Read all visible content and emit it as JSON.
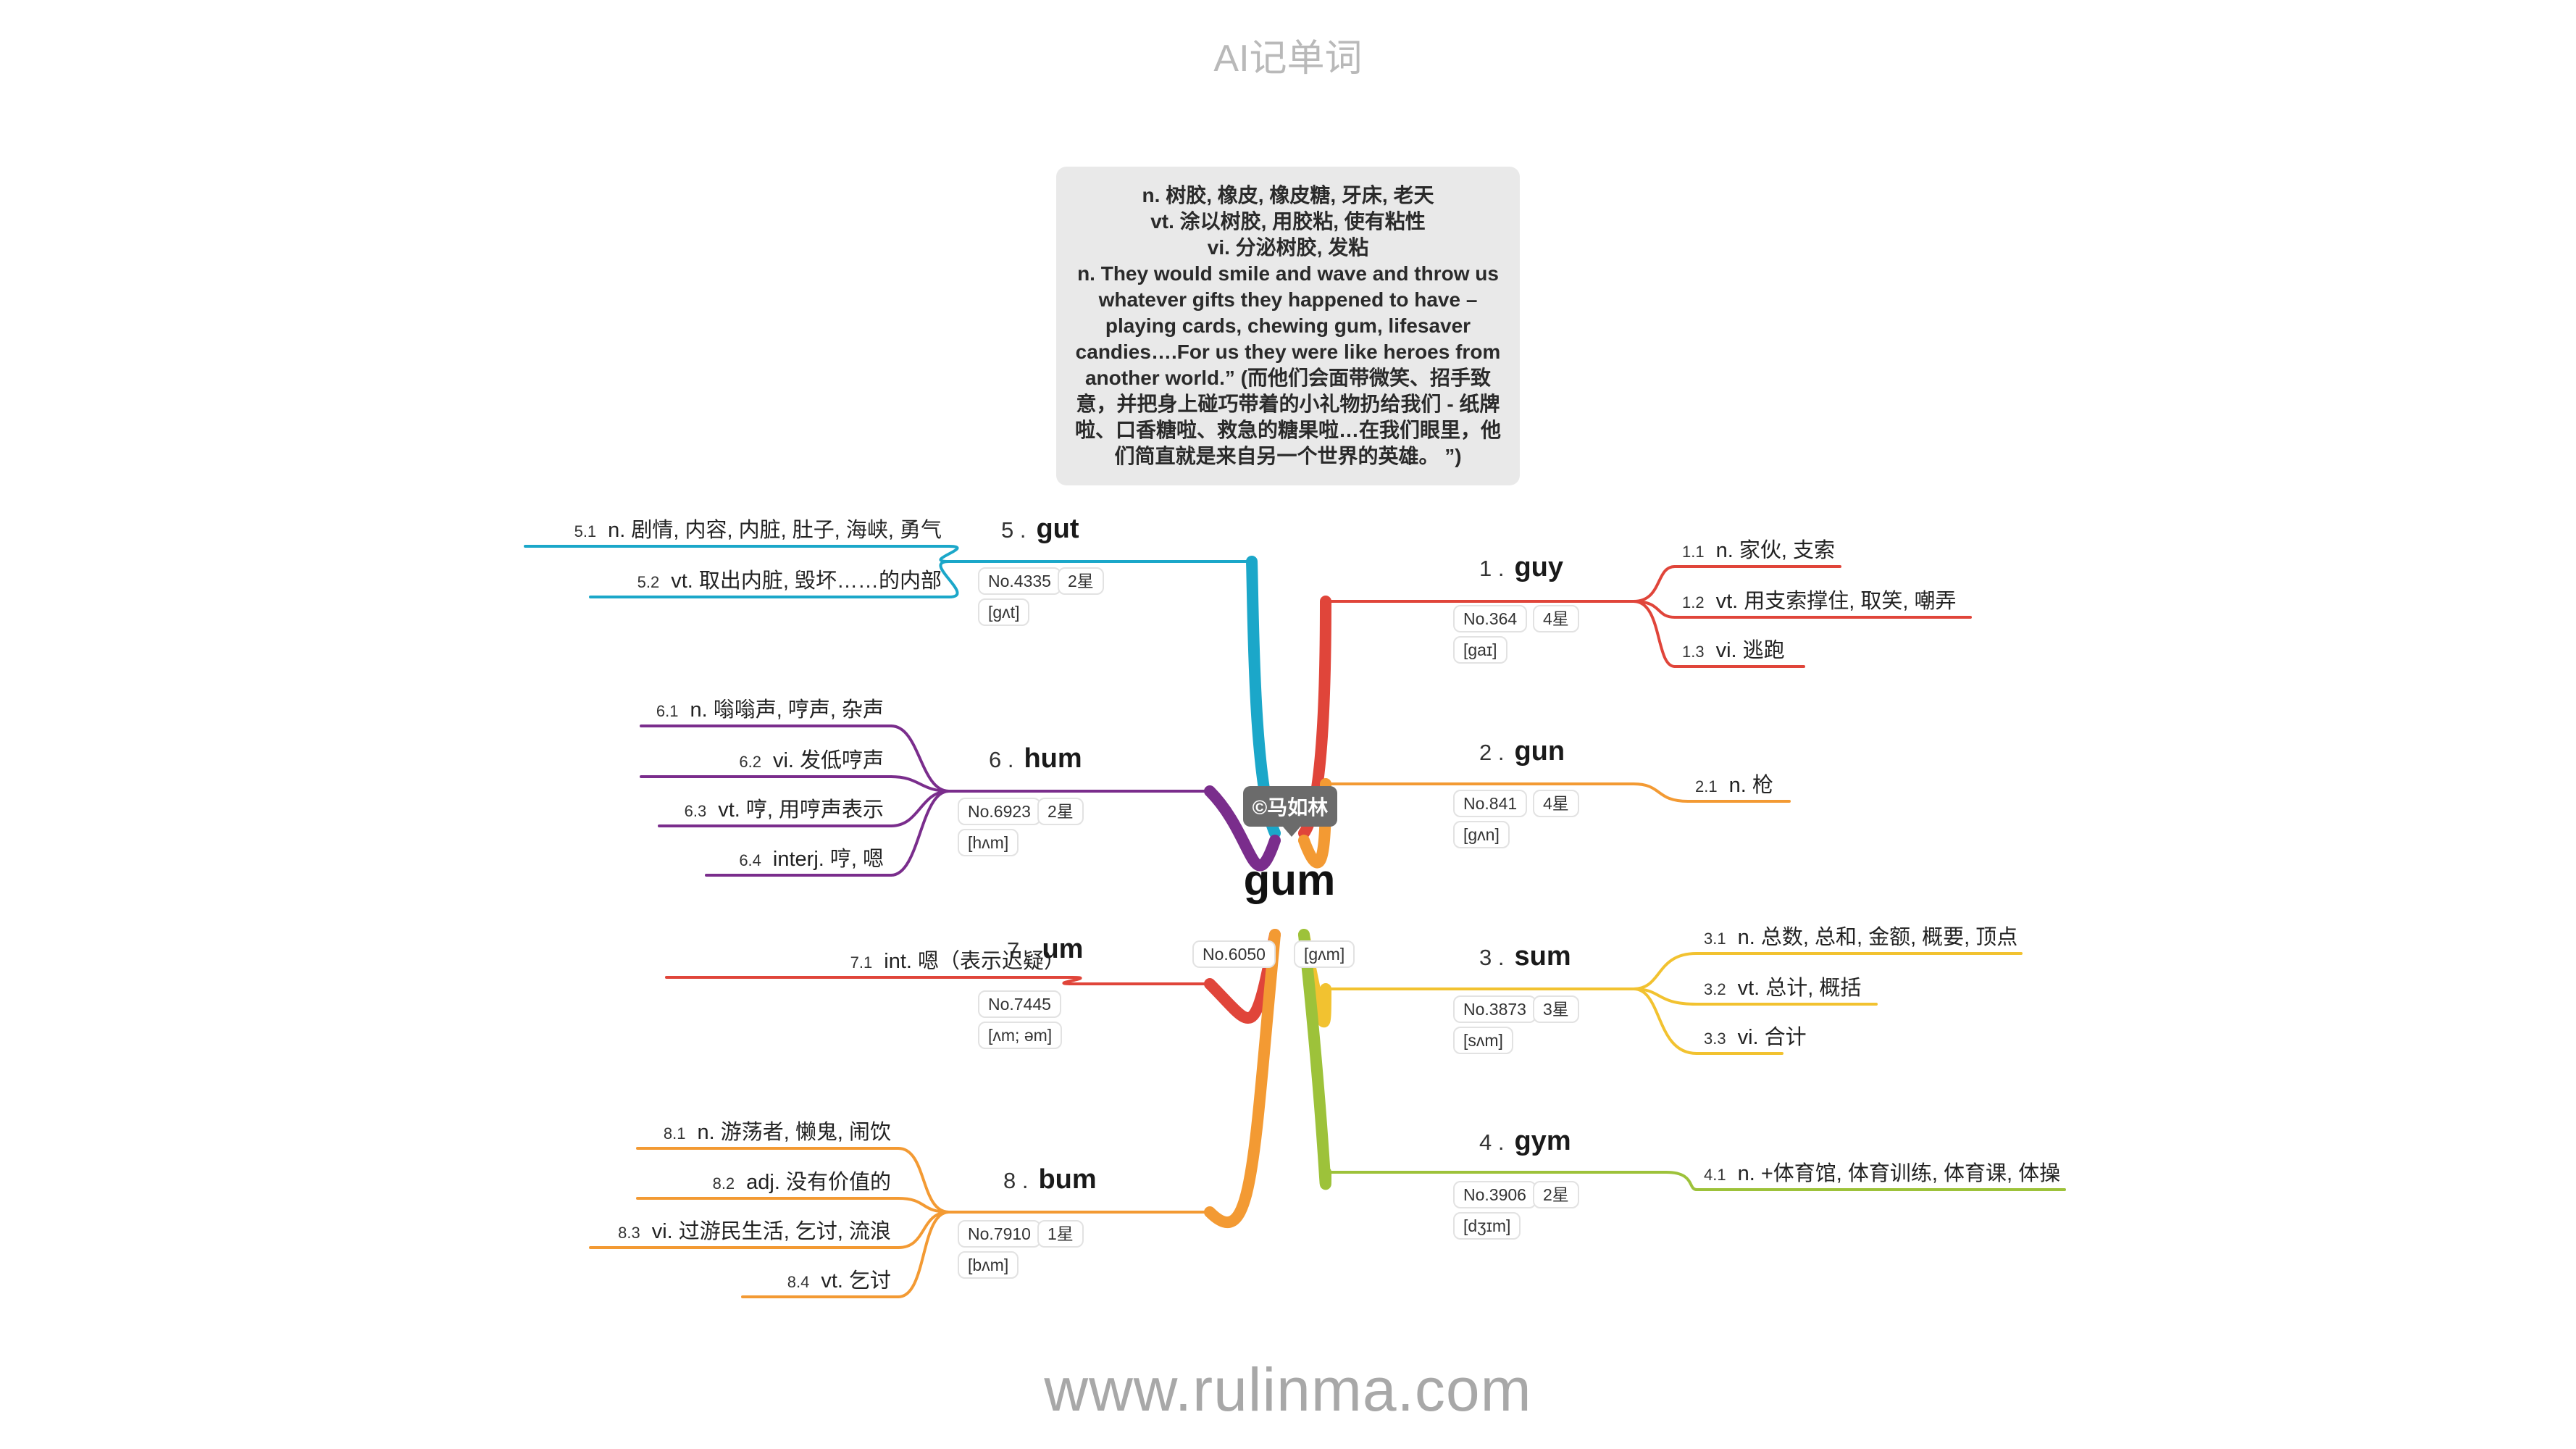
{
  "page_title": "AI记单词",
  "watermark": "www.rulinma.com",
  "author": "©马如林",
  "center": {
    "word": "gum",
    "number": "No.6050",
    "phonetic": "[ɡʌm]"
  },
  "definition_lines": [
    "n. 树胶, 橡皮, 橡皮糖, 牙床, 老天",
    "vt. 涂以树胶, 用胶粘, 使有粘性",
    "vi. 分泌树胶, 发粘",
    "n. They would smile and wave and throw us whatever gifts they happened to have – playing cards, chewing gum, lifesaver candies….For us they were like heroes from another world.” (而他们会面带微笑、招手致意，并把身上碰巧带着的小礼物扔给我们 - 纸牌啦、口香糖啦、救急的糖果啦…在我们眼里，他们简直就是来自另一个世界的英雄。 ”)"
  ],
  "branches": [
    {
      "id": "b1",
      "index": "1 .",
      "word": "guy",
      "number": "No.364",
      "stars": "4星",
      "phonetic": "[ɡaɪ]",
      "color": "#e0453a",
      "items": [
        {
          "num": "1.1",
          "text": "n. 家伙, 支索"
        },
        {
          "num": "1.2",
          "text": "vt. 用支索撑住, 取笑, 嘲弄"
        },
        {
          "num": "1.3",
          "text": "vi. 逃跑"
        }
      ]
    },
    {
      "id": "b2",
      "index": "2 .",
      "word": "gun",
      "number": "No.841",
      "stars": "4星",
      "phonetic": "[ɡʌn]",
      "color": "#f39a33",
      "items": [
        {
          "num": "2.1",
          "text": "n. 枪"
        }
      ]
    },
    {
      "id": "b3",
      "index": "3 .",
      "word": "sum",
      "number": "No.3873",
      "stars": "3星",
      "phonetic": "[sʌm]",
      "color": "#f2c230",
      "items": [
        {
          "num": "3.1",
          "text": "n. 总数, 总和, 金额, 概要, 顶点"
        },
        {
          "num": "3.2",
          "text": "vt. 总计, 概括"
        },
        {
          "num": "3.3",
          "text": "vi. 合计"
        }
      ]
    },
    {
      "id": "b4",
      "index": "4 .",
      "word": "gym",
      "number": "No.3906",
      "stars": "2星",
      "phonetic": "[dʒɪm]",
      "color": "#9dc23a",
      "items": [
        {
          "num": "4.1",
          "text": "n. +体育馆, 体育训练, 体育课, 体操"
        }
      ]
    },
    {
      "id": "b5",
      "index": "5 .",
      "word": "gut",
      "number": "No.4335",
      "stars": "2星",
      "phonetic": "[ɡʌt]",
      "color": "#1ba7c9",
      "items": [
        {
          "num": "5.1",
          "text": "n. 剧情, 内容, 内脏, 肚子, 海峡, 勇气"
        },
        {
          "num": "5.2",
          "text": "vt. 取出内脏, 毁坏……的内部"
        }
      ]
    },
    {
      "id": "b6",
      "index": "6 .",
      "word": "hum",
      "number": "No.6923",
      "stars": "2星",
      "phonetic": "[hʌm]",
      "color": "#7a2d8c",
      "items": [
        {
          "num": "6.1",
          "text": "n. 嗡嗡声, 哼声, 杂声"
        },
        {
          "num": "6.2",
          "text": "vi. 发低哼声"
        },
        {
          "num": "6.3",
          "text": "vt. 哼, 用哼声表示"
        },
        {
          "num": "6.4",
          "text": "interj. 哼, 嗯"
        }
      ]
    },
    {
      "id": "b7",
      "index": "7 .",
      "word": "um",
      "number": "No.7445",
      "stars": "",
      "phonetic": "[ʌm; əm]",
      "color": "#e0453a",
      "items": [
        {
          "num": "7.1",
          "text": "int. 嗯（表示迟疑）"
        }
      ]
    },
    {
      "id": "b8",
      "index": "8 .",
      "word": "bum",
      "number": "No.7910",
      "stars": "1星",
      "phonetic": "[bʌm]",
      "color": "#f39a33",
      "items": [
        {
          "num": "8.1",
          "text": "n. 游荡者, 懒鬼, 闹饮"
        },
        {
          "num": "8.2",
          "text": "adj. 没有价值的"
        },
        {
          "num": "8.3",
          "text": "vi. 过游民生活, 乞讨, 流浪"
        },
        {
          "num": "8.4",
          "text": "vt. 乞讨"
        }
      ]
    }
  ]
}
